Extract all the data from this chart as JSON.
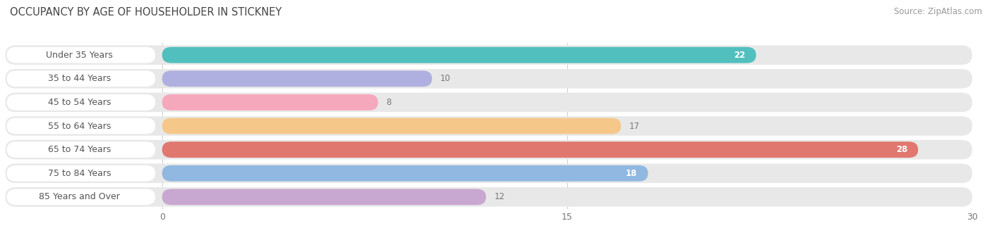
{
  "title": "OCCUPANCY BY AGE OF HOUSEHOLDER IN STICKNEY",
  "source": "Source: ZipAtlas.com",
  "categories": [
    "Under 35 Years",
    "35 to 44 Years",
    "45 to 54 Years",
    "55 to 64 Years",
    "65 to 74 Years",
    "75 to 84 Years",
    "85 Years and Over"
  ],
  "values": [
    22,
    10,
    8,
    17,
    28,
    18,
    12
  ],
  "bar_colors": [
    "#52bfbf",
    "#b0b0e0",
    "#f5a8bc",
    "#f5c88a",
    "#e07870",
    "#90b8e0",
    "#c8a8d0"
  ],
  "bg_bar_color": "#e8e8e8",
  "label_pill_color": "#ffffff",
  "xlim": [
    0,
    30
  ],
  "xticks": [
    0,
    15,
    30
  ],
  "title_fontsize": 10.5,
  "source_fontsize": 8.5,
  "label_fontsize": 9,
  "value_fontsize": 8.5,
  "label_text_color": "#555555",
  "value_color_inside": "#ffffff",
  "value_color_outside": "#777777"
}
